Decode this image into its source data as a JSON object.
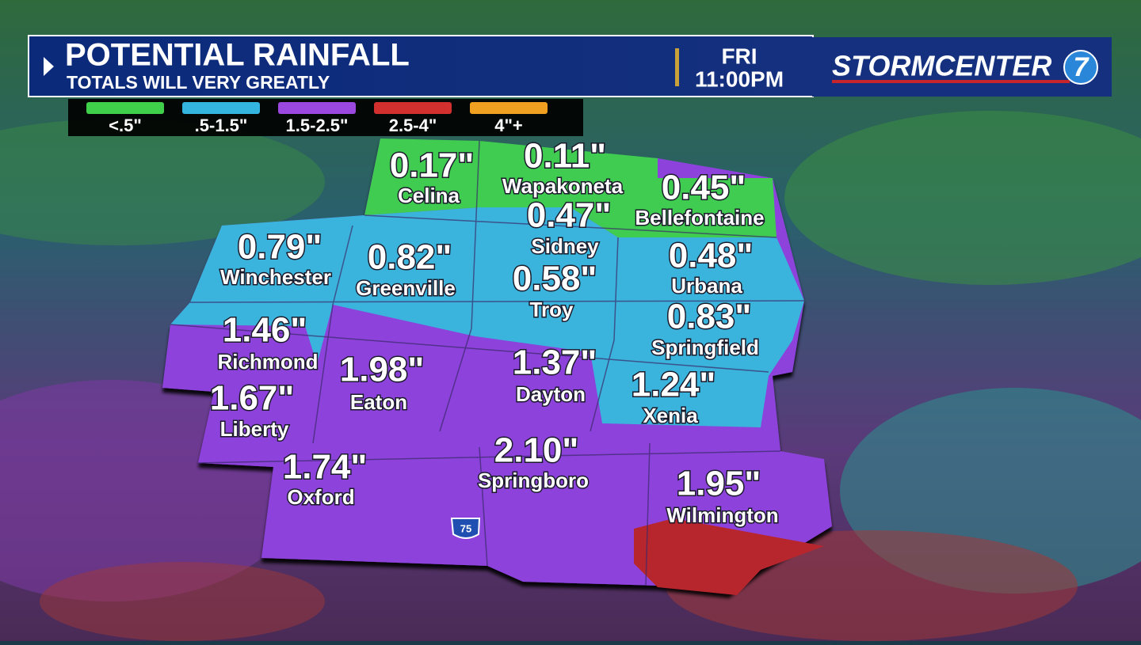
{
  "header": {
    "title": "POTENTIAL RAINFALL",
    "subtitle": "TOTALS WILL VERY GREATLY",
    "day": "FRI",
    "time": "11:00PM",
    "brand": "STORMCENTER",
    "brand_number": "7"
  },
  "legend": [
    {
      "label": "<.5\"",
      "color": "#3fcf4a"
    },
    {
      "label": ".5-1.5\"",
      "color": "#33b5e0"
    },
    {
      "label": "1.5-2.5\"",
      "color": "#9a48e0"
    },
    {
      "label": "2.5-4\"",
      "color": "#d22f2f"
    },
    {
      "label": "4\"+",
      "color": "#f0a020"
    }
  ],
  "locations": [
    {
      "name": "Celina",
      "value": "0.17\""
    },
    {
      "name": "Wapakoneta",
      "value": "0.11\""
    },
    {
      "name": "Bellefontaine",
      "value": "0.45\""
    },
    {
      "name": "Sidney",
      "value": "0.47\""
    },
    {
      "name": "Winchester",
      "value": "0.79\""
    },
    {
      "name": "Greenville",
      "value": "0.82\""
    },
    {
      "name": "Troy",
      "value": "0.58\""
    },
    {
      "name": "Urbana",
      "value": "0.48\""
    },
    {
      "name": "Springfield",
      "value": "0.83\""
    },
    {
      "name": "Richmond",
      "value": "1.46\""
    },
    {
      "name": "Eaton",
      "value": "1.98\""
    },
    {
      "name": "Dayton",
      "value": "1.37\""
    },
    {
      "name": "Xenia",
      "value": "1.24\""
    },
    {
      "name": "Liberty",
      "value": "1.67\""
    },
    {
      "name": "Oxford",
      "value": "1.74\""
    },
    {
      "name": "Springboro",
      "value": "2.10\""
    },
    {
      "name": "Wilmington",
      "value": "1.95\""
    }
  ],
  "interstate": "75"
}
